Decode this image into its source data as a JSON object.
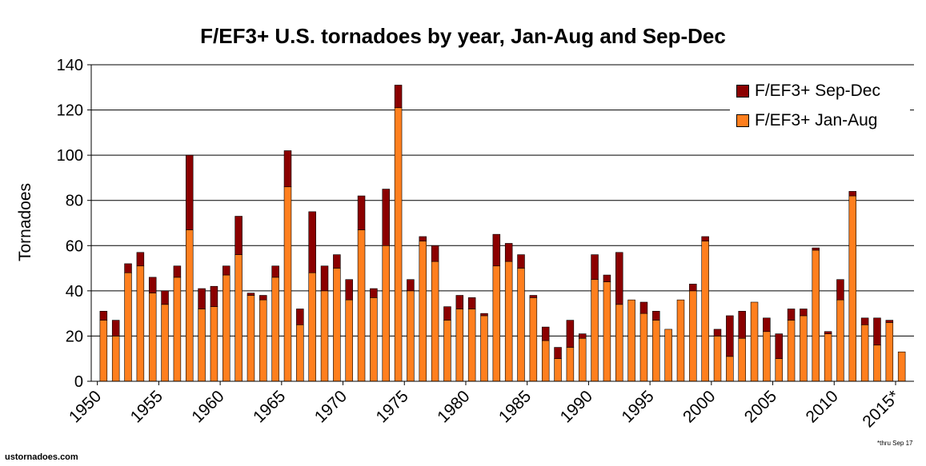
{
  "chart_data": {
    "type": "bar",
    "stacked": true,
    "title": "F/EF3+ U.S. tornadoes by year, Jan-Aug and Sep-Dec",
    "ylabel": "Tornadoes",
    "xlabel": "",
    "ylim": [
      0,
      140
    ],
    "yticks": [
      "0",
      "20",
      "40",
      "60",
      "80",
      "100",
      "120",
      "140"
    ],
    "xtick_labels": [
      {
        "label": "1950",
        "year": 1950
      },
      {
        "label": "1955",
        "year": 1955
      },
      {
        "label": "1960",
        "year": 1960
      },
      {
        "label": "1965",
        "year": 1965
      },
      {
        "label": "1970",
        "year": 1970
      },
      {
        "label": "1975",
        "year": 1975
      },
      {
        "label": "1980",
        "year": 1980
      },
      {
        "label": "1985",
        "year": 1985
      },
      {
        "label": "1990",
        "year": 1990
      },
      {
        "label": "1995",
        "year": 1995
      },
      {
        "label": "2000",
        "year": 2000
      },
      {
        "label": "2005",
        "year": 2005
      },
      {
        "label": "2010",
        "year": 2010
      },
      {
        "label": "2015*",
        "year": 2015
      }
    ],
    "grid": true,
    "legend_position": "top-right",
    "categories": [
      1950,
      1951,
      1952,
      1953,
      1954,
      1955,
      1956,
      1957,
      1958,
      1959,
      1960,
      1961,
      1962,
      1963,
      1964,
      1965,
      1966,
      1967,
      1968,
      1969,
      1970,
      1971,
      1972,
      1973,
      1974,
      1975,
      1976,
      1977,
      1978,
      1979,
      1980,
      1981,
      1982,
      1983,
      1984,
      1985,
      1986,
      1987,
      1988,
      1989,
      1990,
      1991,
      1992,
      1993,
      1994,
      1995,
      1996,
      1997,
      1998,
      1999,
      2000,
      2001,
      2002,
      2003,
      2004,
      2005,
      2006,
      2007,
      2008,
      2009,
      2010,
      2011,
      2012,
      2013,
      2014,
      2015
    ],
    "series": [
      {
        "name": "F/EF3+ Jan-Aug",
        "color": "#ff7f1e",
        "values": [
          27,
          20,
          48,
          51,
          39,
          34,
          46,
          67,
          32,
          33,
          47,
          56,
          38,
          36,
          46,
          86,
          25,
          48,
          40,
          50,
          36,
          67,
          37,
          60,
          121,
          40,
          62,
          53,
          27,
          32,
          32,
          29,
          51,
          53,
          50,
          37,
          18,
          10,
          15,
          19,
          45,
          44,
          34,
          36,
          30,
          27,
          23,
          36,
          40,
          62,
          20,
          11,
          19,
          35,
          22,
          10,
          27,
          29,
          58,
          21,
          36,
          82,
          25,
          16,
          26,
          13
        ]
      },
      {
        "name": "F/EF3+ Sep-Dec",
        "color": "#8b0000",
        "values": [
          4,
          7,
          4,
          6,
          7,
          6,
          5,
          33,
          9,
          9,
          4,
          17,
          1,
          2,
          5,
          16,
          7,
          27,
          11,
          6,
          9,
          15,
          4,
          25,
          10,
          5,
          2,
          7,
          6,
          6,
          5,
          1,
          14,
          8,
          6,
          1,
          6,
          5,
          12,
          2,
          11,
          3,
          23,
          0,
          5,
          4,
          0,
          0,
          3,
          2,
          3,
          18,
          12,
          0,
          6,
          11,
          5,
          3,
          1,
          1,
          9,
          2,
          3,
          12,
          1,
          0
        ]
      }
    ]
  },
  "footer": {
    "source": "ustornadoes.com",
    "footnote": "*thru Sep 17"
  }
}
